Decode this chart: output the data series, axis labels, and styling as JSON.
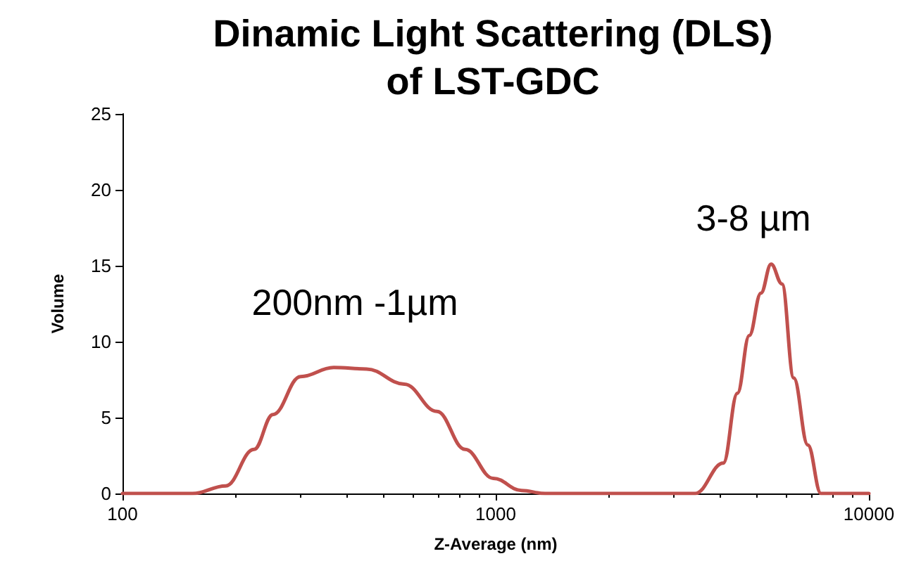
{
  "chart_data": {
    "type": "line",
    "title": "Dinamic Light Scattering (DLS)\nof LST-GDC",
    "xlabel": "Z-Average (nm)",
    "ylabel": "Volume",
    "x": [
      100,
      154,
      189,
      225,
      253,
      300,
      368,
      451,
      569,
      696,
      828,
      985,
      1172,
      1356,
      3423,
      4073,
      4443,
      4780,
      5136,
      5470,
      5850,
      6290,
      6860,
      7440,
      10000
    ],
    "series": [
      {
        "color": "#c0504d",
        "values": [
          0,
          0,
          0.5,
          2.9,
          5.2,
          7.7,
          8.3,
          8.2,
          7.2,
          5.4,
          2.9,
          1.0,
          0.2,
          0,
          0,
          2.0,
          6.6,
          10.4,
          13.2,
          15.1,
          13.8,
          7.6,
          3.2,
          0,
          0
        ]
      }
    ],
    "log": "x",
    "xlim": [
      100,
      10000
    ],
    "xticks": [
      100,
      1000,
      10000
    ],
    "ylim": [
      0,
      25
    ],
    "yticks": [
      0,
      5,
      10,
      15,
      20,
      25
    ],
    "grid": false,
    "marker": "none",
    "line_style": "solid",
    "annotations": [
      "200nm -1µm",
      "3-8 µm"
    ]
  }
}
